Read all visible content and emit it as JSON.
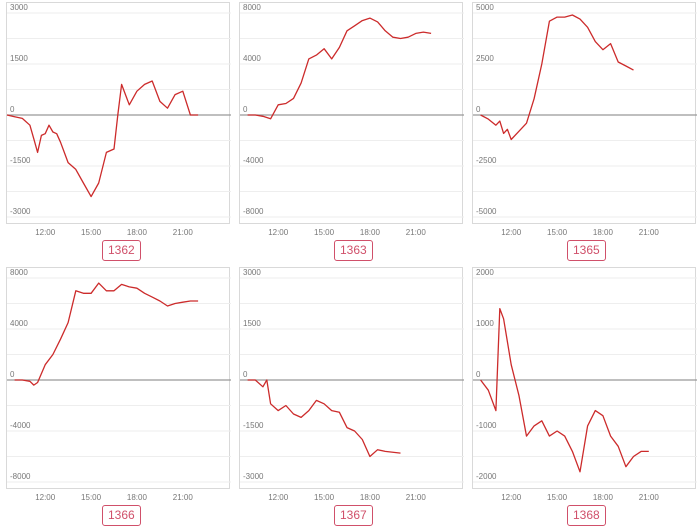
{
  "colors": {
    "line": "#cc2b2b",
    "zero_line": "#999999",
    "grid": "#eeeeee",
    "frame": "#d9d9d9",
    "tag": "#d0506a"
  },
  "chart_data": [
    {
      "type": "line",
      "label": "1362",
      "x_ticks": [
        "12:00",
        "15:00",
        "18:00",
        "21:00"
      ],
      "y_ticks": [
        3000,
        1500,
        0,
        -1500,
        -3000
      ],
      "ylim": [
        -3000,
        3000
      ],
      "series": [
        {
          "x": [
            "09:30",
            "10:00",
            "10:30",
            "11:00",
            "11:15",
            "11:30",
            "11:45",
            "12:00",
            "12:15",
            "12:30",
            "12:45",
            "13:00",
            "13:15",
            "13:30",
            "14:00",
            "14:30",
            "15:00",
            "15:30",
            "16:00",
            "16:30",
            "16:45",
            "17:00",
            "17:30",
            "18:00",
            "18:30",
            "19:00",
            "19:30",
            "20:00",
            "20:30",
            "21:00",
            "21:30",
            "22:00"
          ],
          "y": [
            0,
            -50,
            -100,
            -300,
            -700,
            -1100,
            -600,
            -550,
            -300,
            -500,
            -550,
            -800,
            -1100,
            -1400,
            -1600,
            -2000,
            -2400,
            -2000,
            -1100,
            -1000,
            0,
            900,
            300,
            700,
            900,
            1000,
            400,
            200,
            600,
            700,
            0,
            0
          ]
        }
      ]
    },
    {
      "type": "line",
      "label": "1363",
      "x_ticks": [
        "12:00",
        "15:00",
        "18:00",
        "21:00"
      ],
      "y_ticks": [
        8000,
        4000,
        0,
        -4000,
        -8000
      ],
      "ylim": [
        -8000,
        8000
      ],
      "series": [
        {
          "x": [
            "10:00",
            "10:30",
            "11:00",
            "11:30",
            "12:00",
            "12:30",
            "13:00",
            "13:30",
            "14:00",
            "14:30",
            "15:00",
            "15:30",
            "16:00",
            "16:30",
            "17:00",
            "17:30",
            "18:00",
            "18:30",
            "19:00",
            "19:30",
            "20:00",
            "20:30",
            "21:00",
            "21:30",
            "22:00"
          ],
          "y": [
            0,
            0,
            -100,
            -300,
            800,
            900,
            1300,
            2500,
            4400,
            4700,
            5200,
            4400,
            5300,
            6600,
            7000,
            7400,
            7600,
            7300,
            6600,
            6100,
            6000,
            6100,
            6400,
            6500,
            6400
          ]
        }
      ]
    },
    {
      "type": "line",
      "label": "1365",
      "x_ticks": [
        "12:00",
        "15:00",
        "18:00",
        "21:00"
      ],
      "y_ticks": [
        5000,
        2500,
        0,
        -2500,
        -5000
      ],
      "ylim": [
        -5000,
        5000
      ],
      "series": [
        {
          "x": [
            "10:00",
            "10:30",
            "11:00",
            "11:15",
            "11:30",
            "11:45",
            "12:00",
            "12:30",
            "13:00",
            "13:30",
            "14:00",
            "14:30",
            "15:00",
            "15:30",
            "16:00",
            "16:30",
            "17:00",
            "17:30",
            "18:00",
            "18:30",
            "19:00",
            "19:30",
            "20:00"
          ],
          "y": [
            0,
            -200,
            -500,
            -300,
            -900,
            -700,
            -1200,
            -800,
            -400,
            800,
            2500,
            4600,
            4800,
            4800,
            4900,
            4700,
            4300,
            3600,
            3200,
            3500,
            2600,
            2400,
            2200
          ]
        }
      ]
    },
    {
      "type": "line",
      "label": "1366",
      "x_ticks": [
        "12:00",
        "15:00",
        "18:00",
        "21:00"
      ],
      "y_ticks": [
        8000,
        4000,
        0,
        -4000,
        -8000
      ],
      "ylim": [
        -8000,
        8000
      ],
      "series": [
        {
          "x": [
            "10:00",
            "10:30",
            "11:00",
            "11:15",
            "11:30",
            "12:00",
            "12:30",
            "13:00",
            "13:30",
            "14:00",
            "14:30",
            "15:00",
            "15:30",
            "16:00",
            "16:30",
            "17:00",
            "17:30",
            "18:00",
            "18:30",
            "19:00",
            "19:30",
            "20:00",
            "20:30",
            "21:00",
            "21:30",
            "22:00"
          ],
          "y": [
            0,
            0,
            -100,
            -400,
            -200,
            1200,
            2000,
            3200,
            4500,
            7000,
            6800,
            6800,
            7600,
            7000,
            7000,
            7500,
            7300,
            7200,
            6800,
            6500,
            6200,
            5800,
            6000,
            6100,
            6200,
            6200
          ]
        }
      ]
    },
    {
      "type": "line",
      "label": "1367",
      "x_ticks": [
        "12:00",
        "15:00",
        "18:00",
        "21:00"
      ],
      "y_ticks": [
        3000,
        1500,
        0,
        -1500,
        -3000
      ],
      "ylim": [
        -3000,
        3000
      ],
      "series": [
        {
          "x": [
            "10:00",
            "10:30",
            "11:00",
            "11:15",
            "11:30",
            "12:00",
            "12:30",
            "13:00",
            "13:30",
            "14:00",
            "14:30",
            "15:00",
            "15:30",
            "16:00",
            "16:30",
            "17:00",
            "17:30",
            "18:00",
            "18:30",
            "19:00",
            "20:00"
          ],
          "y": [
            0,
            0,
            -200,
            0,
            -700,
            -900,
            -750,
            -1000,
            -1100,
            -900,
            -600,
            -700,
            -900,
            -950,
            -1400,
            -1500,
            -1750,
            -2250,
            -2050,
            -2100,
            -2150
          ]
        }
      ]
    },
    {
      "type": "line",
      "label": "1368",
      "x_ticks": [
        "12:00",
        "15:00",
        "18:00",
        "21:00"
      ],
      "y_ticks": [
        2000,
        1000,
        0,
        -1000,
        -2000
      ],
      "ylim": [
        -2000,
        2000
      ],
      "series": [
        {
          "x": [
            "10:00",
            "10:30",
            "11:00",
            "11:15",
            "11:30",
            "12:00",
            "12:30",
            "13:00",
            "13:30",
            "14:00",
            "14:30",
            "15:00",
            "15:30",
            "16:00",
            "16:30",
            "17:00",
            "17:30",
            "18:00",
            "18:30",
            "19:00",
            "19:30",
            "20:00",
            "20:30",
            "21:00"
          ],
          "y": [
            0,
            -200,
            -600,
            1400,
            1200,
            300,
            -300,
            -1100,
            -900,
            -800,
            -1100,
            -1000,
            -1100,
            -1400,
            -1800,
            -900,
            -600,
            -700,
            -1100,
            -1300,
            -1700,
            -1500,
            -1400,
            -1400
          ]
        }
      ]
    }
  ]
}
